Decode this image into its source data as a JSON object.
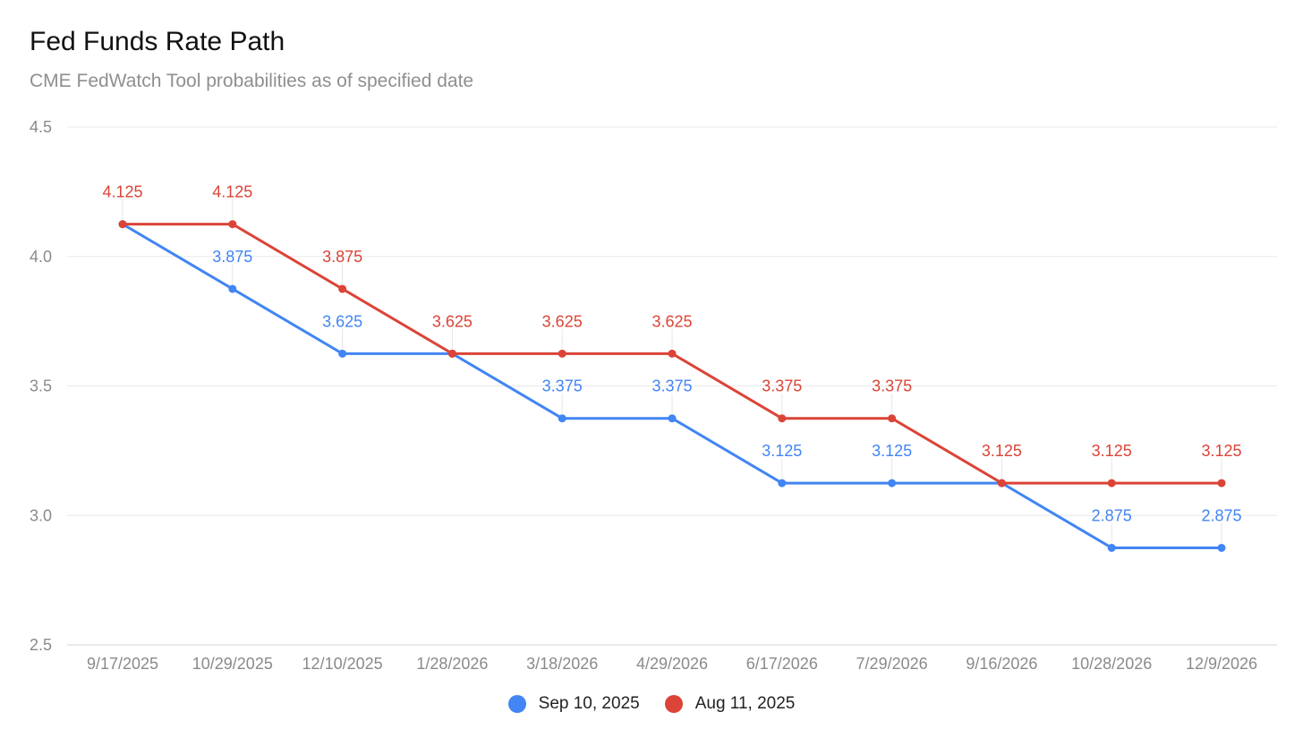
{
  "chart_data": {
    "type": "line",
    "title": "Fed Funds Rate Path",
    "subtitle": "CME FedWatch Tool probabilities as of specified date",
    "xlabel": "",
    "ylabel": "",
    "ylim": [
      2.5,
      4.5
    ],
    "yticks": [
      "2.5",
      "3.0",
      "3.5",
      "4.0",
      "4.5"
    ],
    "grid": true,
    "legend_position": "bottom",
    "categories": [
      "9/17/2025",
      "10/29/2025",
      "12/10/2025",
      "1/28/2026",
      "3/18/2026",
      "4/29/2026",
      "6/17/2026",
      "7/29/2026",
      "9/16/2026",
      "10/28/2026",
      "12/9/2026"
    ],
    "series": [
      {
        "name": "Sep 10, 2025",
        "color": "#4285f4",
        "values": [
          4.125,
          3.875,
          3.625,
          3.625,
          3.375,
          3.375,
          3.125,
          3.125,
          3.125,
          2.875,
          2.875
        ],
        "labels": [
          "",
          "3.875",
          "3.625",
          "",
          "3.375",
          "3.375",
          "3.125",
          "3.125",
          "",
          "2.875",
          "2.875"
        ]
      },
      {
        "name": "Aug 11, 2025",
        "color": "#db4437",
        "values": [
          4.125,
          4.125,
          3.875,
          3.625,
          3.625,
          3.625,
          3.375,
          3.375,
          3.125,
          3.125,
          3.125
        ],
        "labels": [
          "4.125",
          "4.125",
          "3.875",
          "3.625",
          "3.625",
          "3.625",
          "3.375",
          "3.375",
          "3.125",
          "3.125",
          "3.125"
        ]
      }
    ]
  }
}
